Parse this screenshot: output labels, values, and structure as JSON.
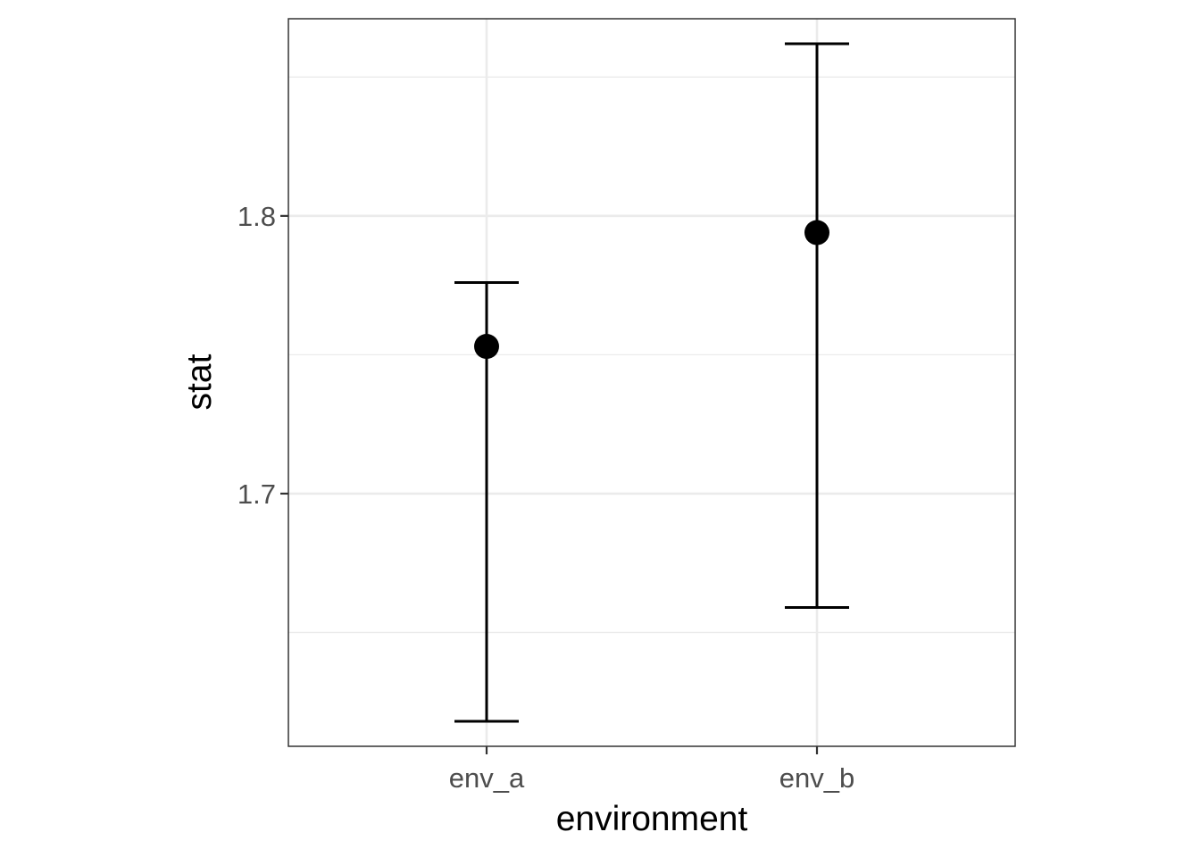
{
  "chart_data": {
    "type": "scatter",
    "xlabel": "environment",
    "ylabel": "stat",
    "categories": [
      "env_a",
      "env_b"
    ],
    "series": [
      {
        "values": [
          1.753,
          1.794
        ],
        "lower": [
          1.618,
          1.659
        ],
        "upper": [
          1.776,
          1.862
        ]
      }
    ],
    "ylim": [
      1.609,
      1.871
    ],
    "yticks": [
      1.7,
      1.8
    ],
    "ytick_labels": [
      "1.7",
      "1.8"
    ],
    "grid": true,
    "theme": "bw",
    "colors": {
      "panel_border": "#333333",
      "grid_major": "#ebebeb",
      "grid_minor": "#ebebeb",
      "mark": "#000000",
      "tick_text": "#4d4d4d"
    }
  }
}
